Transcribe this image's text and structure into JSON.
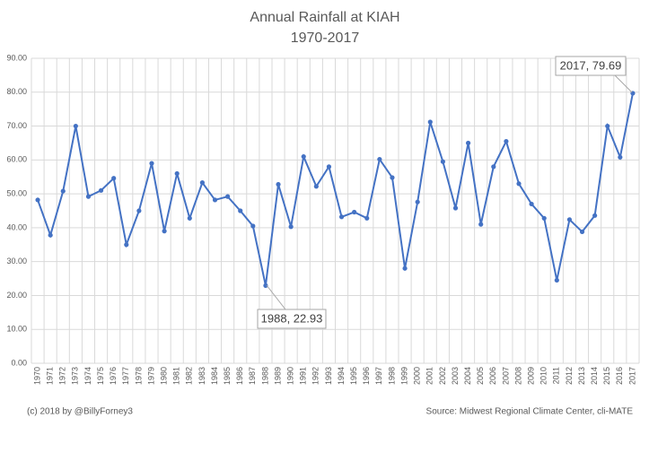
{
  "chart_data": {
    "type": "line",
    "title": "Annual Rainfall at KIAH",
    "subtitle": "1970-2017",
    "categories": [
      "1970",
      "1971",
      "1972",
      "1973",
      "1974",
      "1975",
      "1976",
      "1977",
      "1978",
      "1979",
      "1980",
      "1981",
      "1982",
      "1983",
      "1984",
      "1985",
      "1986",
      "1987",
      "1988",
      "1989",
      "1990",
      "1991",
      "1992",
      "1993",
      "1994",
      "1995",
      "1996",
      "1997",
      "1998",
      "1999",
      "2000",
      "2001",
      "2002",
      "2003",
      "2004",
      "2005",
      "2006",
      "2007",
      "2008",
      "2009",
      "2010",
      "2011",
      "2012",
      "2013",
      "2014",
      "2015",
      "2016",
      "2017"
    ],
    "values": [
      48.2,
      37.8,
      50.8,
      70.0,
      49.2,
      51.0,
      54.6,
      35.0,
      45.0,
      59.0,
      39.0,
      56.0,
      42.8,
      53.3,
      48.2,
      49.2,
      45.0,
      40.5,
      22.93,
      52.8,
      40.3,
      61.0,
      52.2,
      58.0,
      43.2,
      44.6,
      42.8,
      60.2,
      54.8,
      28.0,
      47.6,
      71.2,
      59.5,
      45.8,
      65.0,
      41.0,
      58.0,
      65.5,
      53.0,
      47.0,
      42.8,
      24.5,
      42.4,
      38.8,
      43.6,
      70.0,
      60.8,
      79.69
    ],
    "color": "#4472c4",
    "ylim": [
      0,
      90
    ],
    "yticks": [
      {
        "value": 0,
        "label": "0.00"
      },
      {
        "value": 10,
        "label": "10.00"
      },
      {
        "value": 20,
        "label": "20.00"
      },
      {
        "value": 30,
        "label": "30.00"
      },
      {
        "value": 40,
        "label": "40.00"
      },
      {
        "value": 50,
        "label": "50.00"
      },
      {
        "value": 60,
        "label": "60.00"
      },
      {
        "value": 70,
        "label": "70.00"
      },
      {
        "value": 80,
        "label": "80.00"
      },
      {
        "value": 90,
        "label": "90.00"
      }
    ],
    "grid": true,
    "annotations": [
      "1988, 22.93",
      "2017, 79.69"
    ],
    "footer_left": "(c) 2018  by @BillyForney3",
    "footer_right": "Source: Midwest Regional Climate Center, cli-MATE"
  }
}
